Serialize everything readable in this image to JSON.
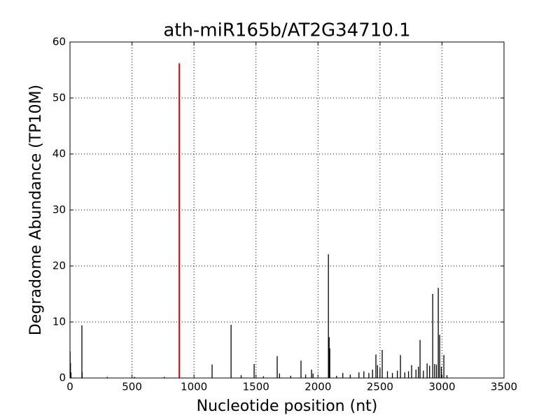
{
  "chart_data": {
    "type": "stem",
    "title": "ath-miR165b/AT2G34710.1",
    "x_label": "Nucleotide position (nt)",
    "y_label": "Degradome Abundance (TP10M)",
    "xlim": [
      0,
      3500
    ],
    "xticks": [
      0,
      500,
      1000,
      1500,
      2000,
      2500,
      3000,
      3500
    ],
    "ylim": [
      0,
      60
    ],
    "yticks": [
      0,
      10,
      20,
      30,
      40,
      50,
      60
    ],
    "grid": true,
    "series": [
      {
        "color": "#000000",
        "x": [
          1,
          4,
          8,
          96,
          98,
          300,
          520,
          760,
          1146,
          1299,
          1380,
          1485,
          1560,
          1671,
          1690,
          1780,
          1863,
          1900,
          1948,
          1960,
          2084,
          2090,
          2095,
          2150,
          2200,
          2260,
          2330,
          2370,
          2410,
          2440,
          2467,
          2480,
          2500,
          2518,
          2560,
          2600,
          2640,
          2665,
          2700,
          2730,
          2755,
          2790,
          2810,
          2823,
          2850,
          2880,
          2900,
          2925,
          2940,
          2955,
          2970,
          2981,
          2995,
          3015,
          3040
        ],
        "values": [
          4.7,
          2.7,
          1.0,
          9.4,
          1.0,
          0.2,
          0.2,
          0.2,
          2.4,
          9.5,
          0.5,
          2.5,
          0.3,
          3.9,
          0.8,
          0.4,
          3.1,
          0.6,
          1.5,
          0.8,
          22.1,
          7.3,
          5.3,
          0.4,
          0.9,
          0.6,
          1.0,
          1.2,
          0.9,
          1.5,
          4.2,
          2.3,
          1.8,
          5.0,
          1.2,
          0.9,
          1.3,
          4.1,
          1.0,
          1.2,
          2.3,
          1.5,
          2.0,
          6.8,
          1.3,
          2.6,
          2.2,
          15.0,
          2.5,
          2.4,
          16.1,
          7.7,
          2.0,
          4.1,
          0.5
        ]
      },
      {
        "color": "#ff0000",
        "x": [
          881
        ],
        "values": [
          56.2
        ]
      }
    ]
  }
}
